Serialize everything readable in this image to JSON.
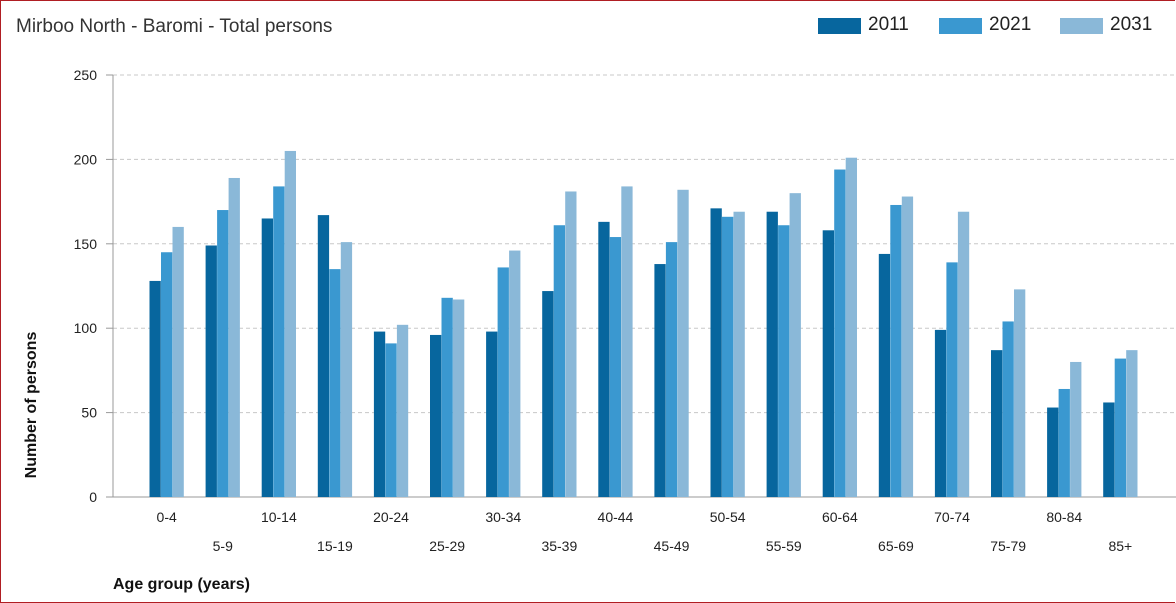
{
  "chart_data": {
    "type": "bar",
    "title": "Mirboo North - Baromi - Total persons",
    "xlabel": "Age group (years)",
    "ylabel": "Number of persons",
    "ylim": [
      0,
      250
    ],
    "yticks": [
      0,
      50,
      100,
      150,
      200,
      250
    ],
    "grid": true,
    "legend_position": "top-right",
    "categories": [
      "0-4",
      "5-9",
      "10-14",
      "15-19",
      "20-24",
      "25-29",
      "30-34",
      "35-39",
      "40-44",
      "45-49",
      "50-54",
      "55-59",
      "60-64",
      "65-69",
      "70-74",
      "75-79",
      "80-84",
      "85+"
    ],
    "series": [
      {
        "name": "2011",
        "color": "#07669e",
        "values": [
          128,
          149,
          165,
          167,
          98,
          96,
          98,
          122,
          163,
          138,
          171,
          169,
          158,
          144,
          99,
          87,
          53,
          56
        ]
      },
      {
        "name": "2021",
        "color": "#3a98d0",
        "values": [
          145,
          170,
          184,
          135,
          91,
          118,
          136,
          161,
          154,
          151,
          166,
          161,
          194,
          173,
          139,
          104,
          64,
          82
        ]
      },
      {
        "name": "2031",
        "color": "#8ab8d8",
        "values": [
          160,
          189,
          205,
          151,
          102,
          117,
          146,
          181,
          184,
          182,
          169,
          180,
          201,
          178,
          169,
          123,
          80,
          87
        ]
      }
    ]
  }
}
